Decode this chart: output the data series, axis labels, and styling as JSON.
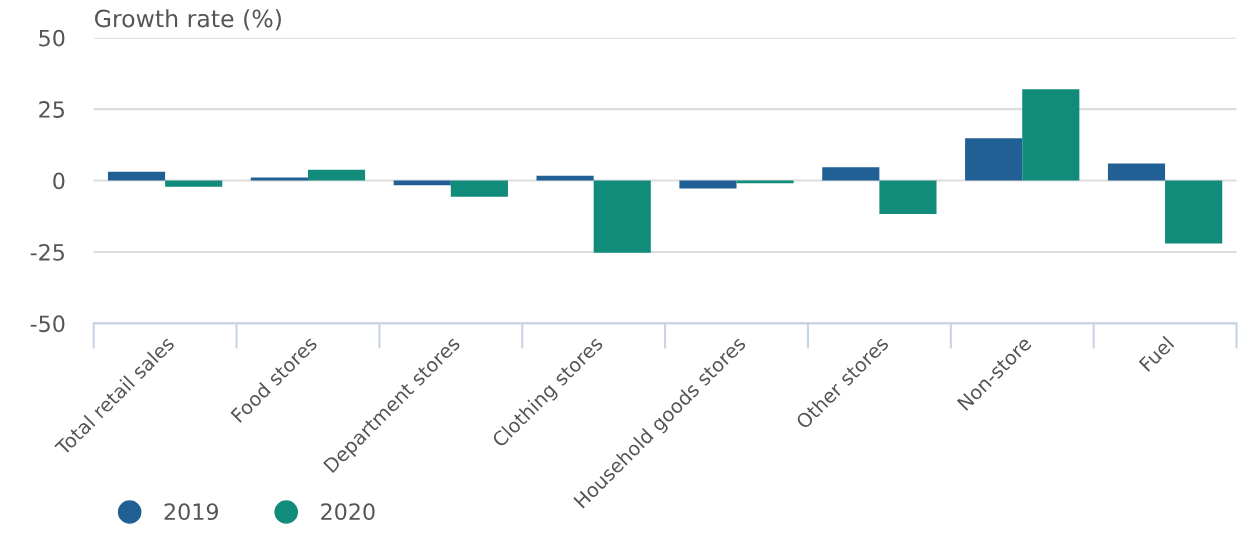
{
  "chart_data": {
    "type": "bar",
    "ylabel": "Growth rate (%)",
    "categories": [
      "Total retail sales",
      "Food stores",
      "Department stores",
      "Clothing stores",
      "Household goods stores",
      "Other stores",
      "Non-store",
      "Fuel"
    ],
    "series": [
      {
        "name": "2019",
        "color": "#206095",
        "values": [
          3.1,
          1.1,
          -1.6,
          1.7,
          -2.8,
          4.7,
          14.8,
          6.0
        ]
      },
      {
        "name": "2020",
        "color": "#118c7b",
        "values": [
          -2.2,
          3.8,
          -5.7,
          -25.3,
          -0.9,
          -11.7,
          32.0,
          -22.0
        ]
      }
    ],
    "ylim": [
      -50,
      50
    ],
    "yticks": [
      -50,
      -25,
      0,
      25,
      50
    ],
    "grid": "y",
    "legend": "bottom left"
  }
}
